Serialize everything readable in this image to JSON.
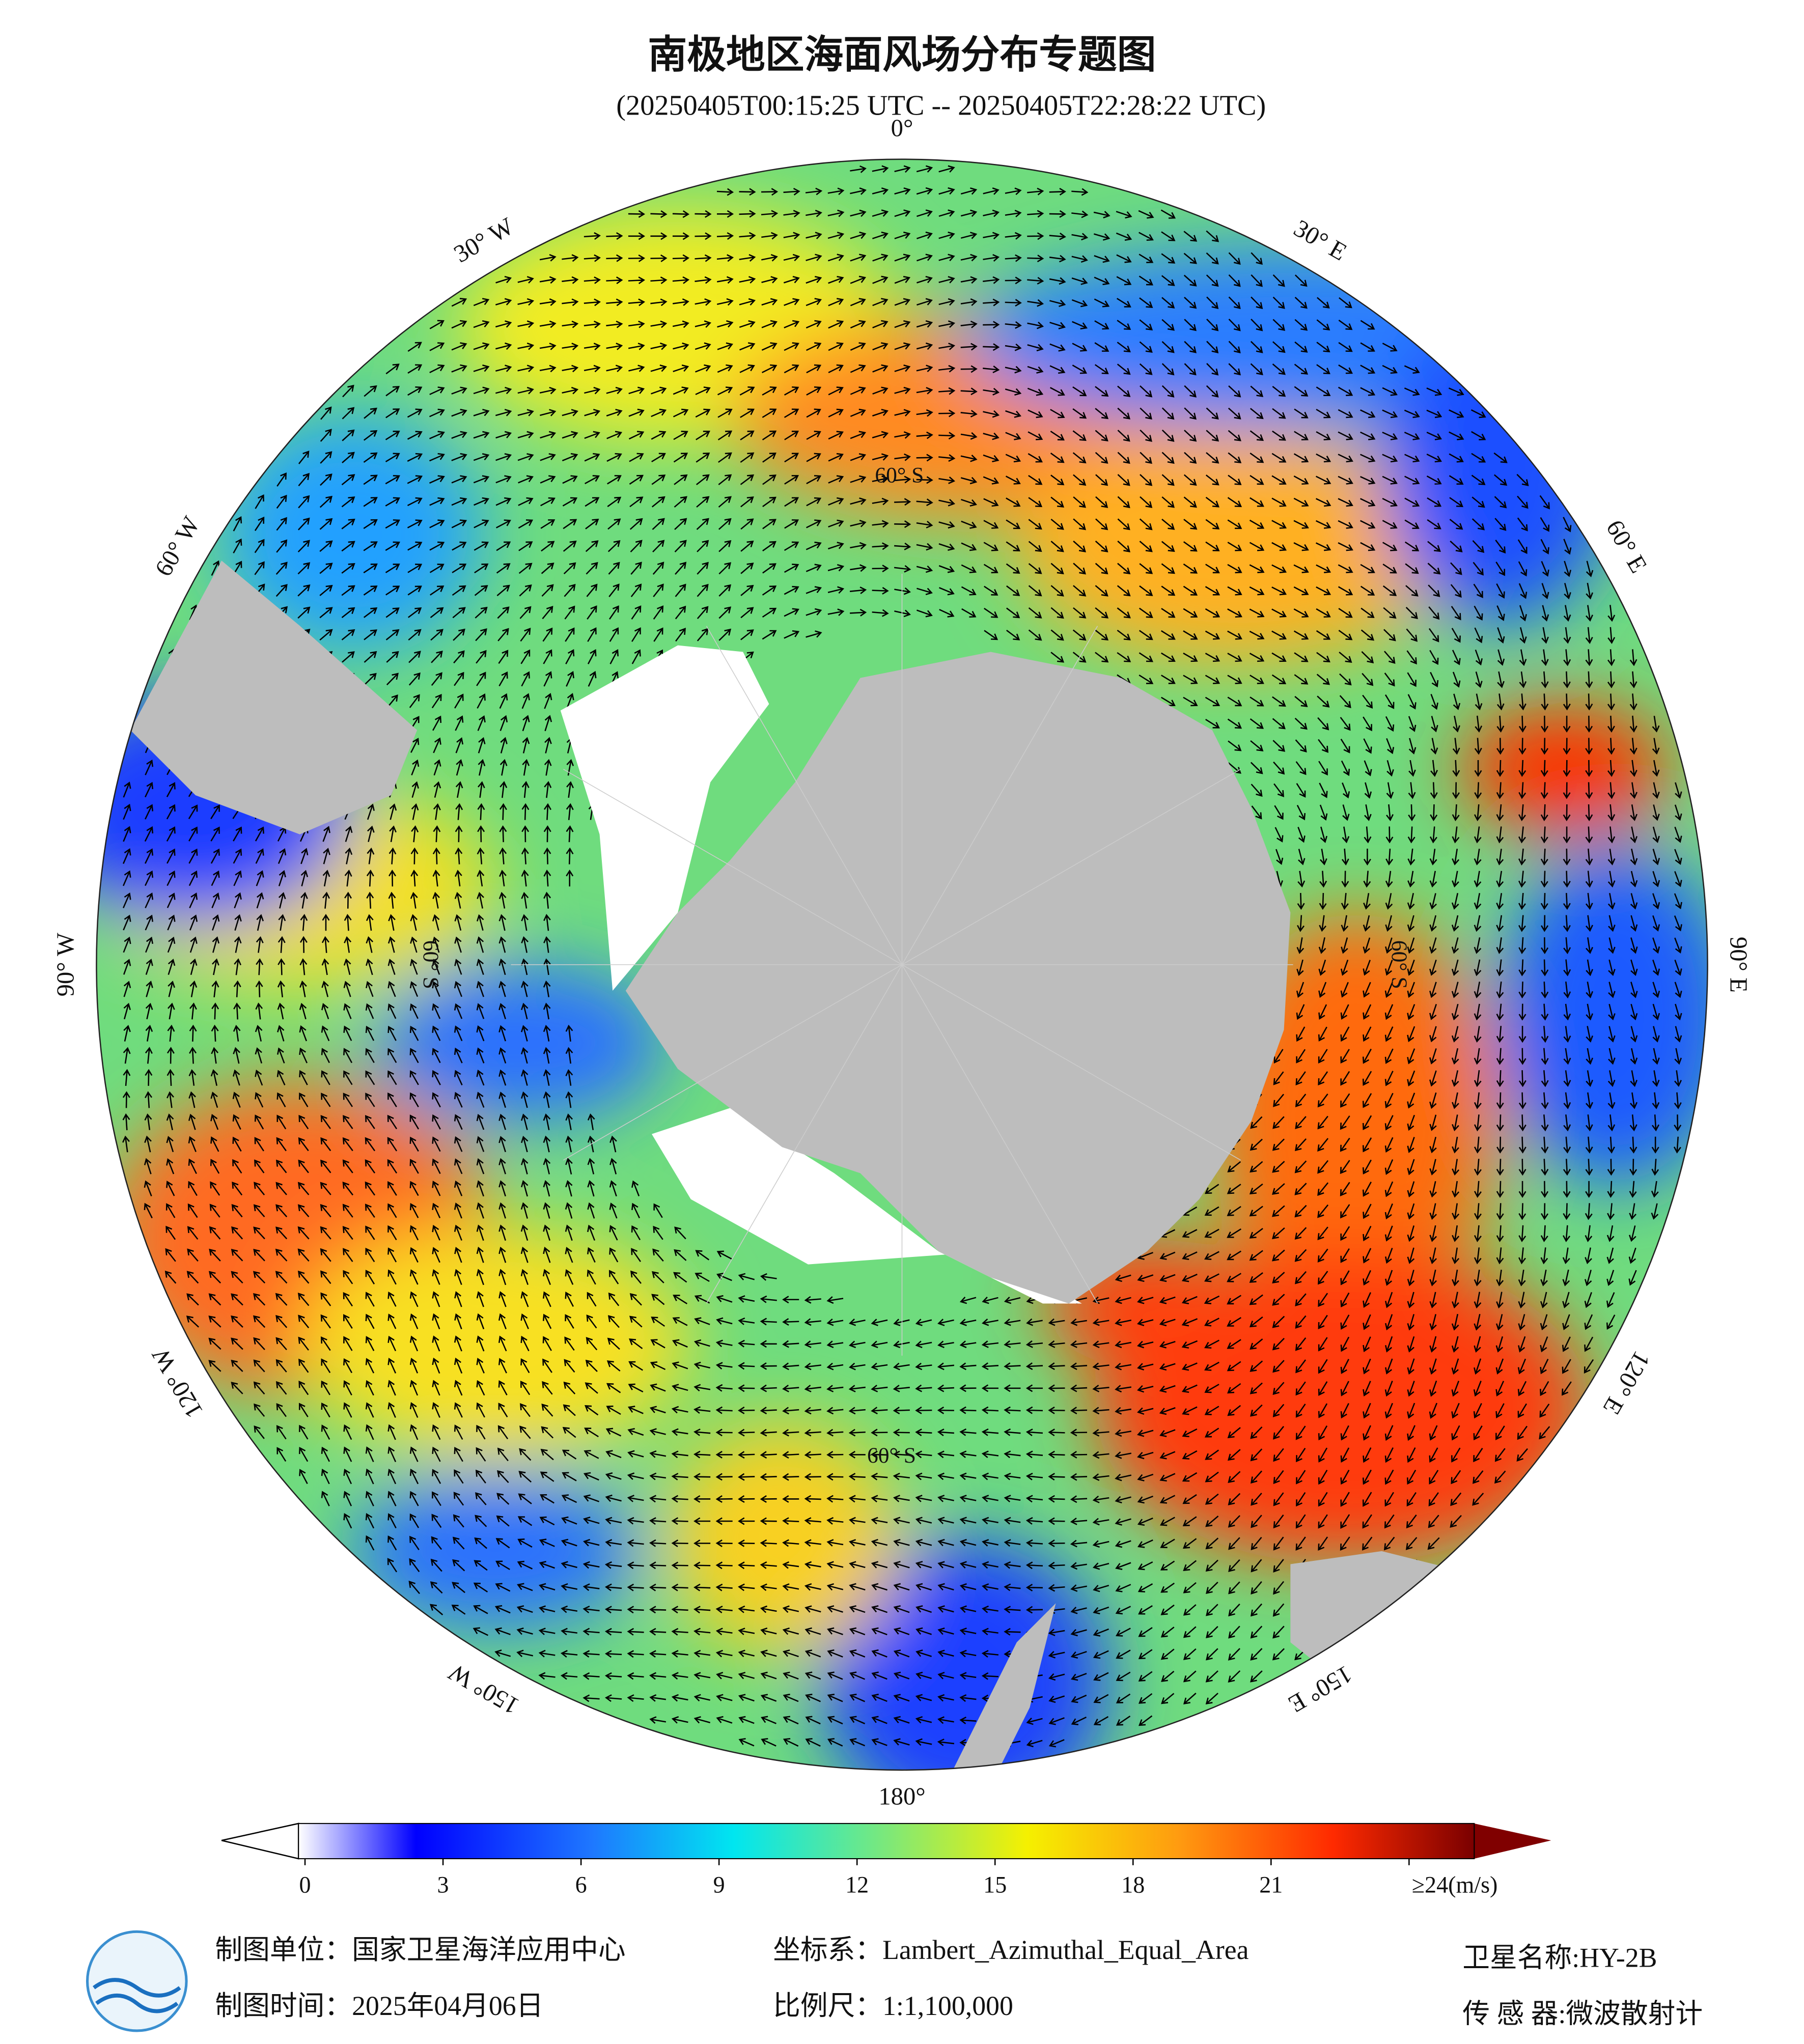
{
  "header": {
    "title": "南极地区海面风场分布专题图",
    "subtitle": "(20250405T00:15:25 UTC -- 20250405T22:28:22 UTC)"
  },
  "map": {
    "longitude_labels": [
      {
        "angle": 0,
        "label": "0°"
      },
      {
        "angle": 30,
        "label": "30° E"
      },
      {
        "angle": 60,
        "label": "60° E"
      },
      {
        "angle": 90,
        "label": "90° E"
      },
      {
        "angle": 120,
        "label": "120° E"
      },
      {
        "angle": 150,
        "label": "150° E"
      },
      {
        "angle": 180,
        "label": "180°"
      },
      {
        "angle": 210,
        "label": "150° W"
      },
      {
        "angle": 240,
        "label": "120° W"
      },
      {
        "angle": 270,
        "label": "90° W"
      },
      {
        "angle": 300,
        "label": "60° W"
      },
      {
        "angle": 330,
        "label": "30° W"
      }
    ],
    "latitude_label": "60° S"
  },
  "colorbar": {
    "range": [
      0,
      24
    ],
    "ticks": [
      0,
      3,
      6,
      9,
      12,
      15,
      18,
      21,
      {
        "value": 24,
        "label": "≥24"
      }
    ],
    "unit": "(m/s)"
  },
  "footer": {
    "producer": "制图单位：国家卫星海洋应用中心",
    "date": "制图时间：2025年04月06日",
    "crs": "坐标系：Lambert_Azimuthal_Equal_Area",
    "scale": "比例尺：1:1,100,000",
    "satellite": "卫星名称:HY-2B",
    "sensor": "传 感 器:微波散射计"
  }
}
